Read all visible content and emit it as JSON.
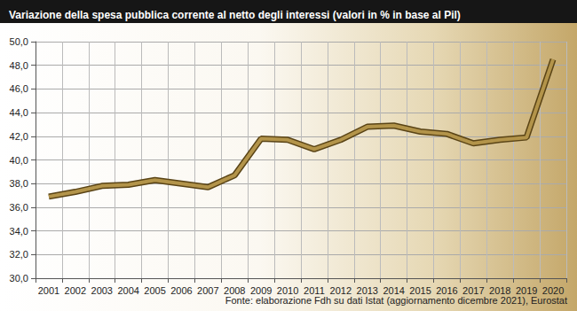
{
  "chart_data": {
    "type": "line",
    "title": "Variazione della spesa pubblica corrente al netto degli interessi (valori in % in base al Pil)",
    "source": "Fonte: elaborazione Fdh su dati Istat (aggiornamento dicembre 2021), Eurostat",
    "categories": [
      "2001",
      "2002",
      "2003",
      "2004",
      "2005",
      "2006",
      "2007",
      "2008",
      "2009",
      "2010",
      "2011",
      "2012",
      "2013",
      "2014",
      "2015",
      "2016",
      "2017",
      "2018",
      "2019",
      "2020"
    ],
    "values": [
      36.9,
      37.3,
      37.8,
      37.9,
      38.3,
      38.0,
      37.7,
      38.7,
      41.8,
      41.7,
      40.9,
      41.7,
      42.8,
      42.9,
      42.4,
      42.2,
      41.4,
      41.7,
      41.9,
      48.5
    ],
    "color": "#b3944a",
    "ylim": [
      30,
      50
    ],
    "yticks": [
      {
        "value": 30,
        "label": "30,0"
      },
      {
        "value": 32,
        "label": "32,0"
      },
      {
        "value": 34,
        "label": "34,0"
      },
      {
        "value": 36,
        "label": "36,0"
      },
      {
        "value": 38,
        "label": "38,0"
      },
      {
        "value": 40,
        "label": "40,0"
      },
      {
        "value": 42,
        "label": "42,0"
      },
      {
        "value": 44,
        "label": "44,0"
      },
      {
        "value": 46,
        "label": "46,0"
      },
      {
        "value": 48,
        "label": "48,0"
      },
      {
        "value": 50,
        "label": "50,0"
      }
    ],
    "grid": true
  }
}
